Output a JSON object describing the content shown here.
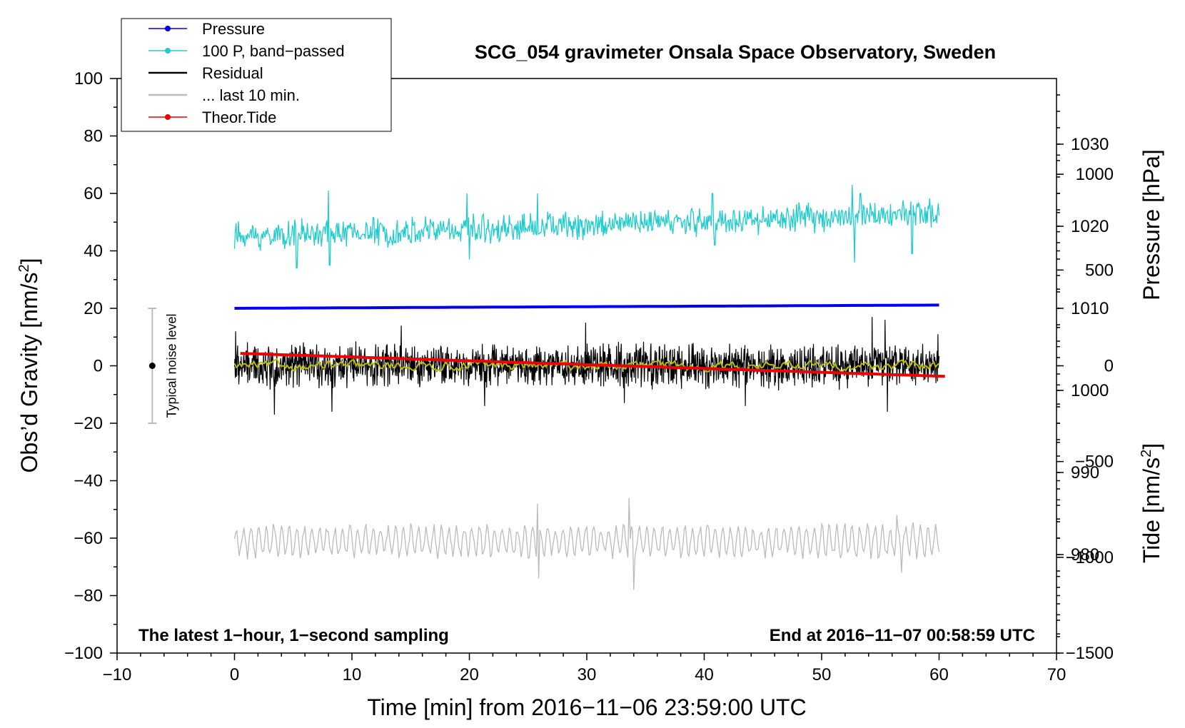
{
  "chart_data": {
    "type": "line",
    "title": "SCG_054 gravimeter Onsala Space Observatory, Sweden",
    "xlabel": "Time [min] from 2016−11−06 23:59:00 UTC",
    "ylabel_left": "Obs’d Gravity [nm/s",
    "ylabel_left_suffix": "]",
    "ylabel_pressure": "Pressure [hPa]",
    "ylabel_tide": "Tide [nm/s",
    "ylabel_tide_suffix": "]",
    "superscript": "2",
    "xlim": [
      -10,
      70
    ],
    "ylim": [
      -100,
      100
    ],
    "pressure_lim": [
      968,
      1038
    ],
    "tide_lim": [
      -1500,
      1500
    ],
    "x_ticks": [
      -10,
      0,
      10,
      20,
      30,
      40,
      50,
      60,
      70
    ],
    "x_tick_labels": [
      "−10",
      "0",
      "10",
      "20",
      "30",
      "40",
      "50",
      "60",
      "70"
    ],
    "y_ticks": [
      -100,
      -80,
      -60,
      -40,
      -20,
      0,
      20,
      40,
      60,
      80,
      100
    ],
    "y_tick_labels": [
      "−100",
      "−80",
      "−60",
      "−40",
      "−20",
      "0",
      "20",
      "40",
      "60",
      "80",
      "100"
    ],
    "pressure_ticks": [
      980,
      990,
      1000,
      1010,
      1020,
      1030
    ],
    "pressure_tick_labels": [
      "980",
      "990",
      "1000",
      "1010",
      "1020",
      "1030"
    ],
    "tide_ticks": [
      -1500,
      -1000,
      -500,
      0,
      500,
      1000
    ],
    "tide_tick_labels": [
      "−1500",
      "−1000",
      "−500",
      "0",
      "500",
      "1000"
    ],
    "annotation_left": "The latest 1−hour, 1−second sampling",
    "annotation_right": "End at 2016−11−07 00:58:59 UTC",
    "noise_label": "Typical noise level",
    "noise_bar": {
      "x": -7,
      "center": 0,
      "half_range": 20
    },
    "legend": [
      {
        "label": "Pressure",
        "color": "#0000ee",
        "marker": true
      },
      {
        "label": "100 P, band−passed",
        "color": "#22cccc",
        "marker": true
      },
      {
        "label": "Residual",
        "color": "#000000",
        "marker": false
      },
      {
        "label": "... last 10 min.",
        "color": "#bbbbbb",
        "marker": false
      },
      {
        "label": "Theor.Tide",
        "color": "#ee0000",
        "marker": true
      }
    ],
    "series": [
      {
        "name": "Pressure",
        "axis": "pressure",
        "color": "#0000ee",
        "x_range": [
          0,
          60
        ],
        "start": 1010.0,
        "end": 1010.4
      },
      {
        "name": "100 P, band-passed",
        "axis": "gravity",
        "color": "#22cccc",
        "x_range": [
          0,
          60
        ],
        "start": 45,
        "end": 53,
        "noise": 4,
        "spikes": [
          [
            5.3,
            34
          ],
          [
            8.0,
            61
          ],
          [
            8.1,
            35
          ],
          [
            19.8,
            60
          ],
          [
            20.0,
            37
          ],
          [
            25.8,
            60
          ],
          [
            40.7,
            60
          ],
          [
            40.9,
            42
          ],
          [
            52.6,
            63
          ],
          [
            52.8,
            36
          ],
          [
            53.3,
            60
          ],
          [
            57.7,
            39
          ]
        ]
      },
      {
        "name": "Residual",
        "axis": "gravity",
        "color": "#000000",
        "x_range": [
          0,
          60
        ],
        "center": 0,
        "noise": 6,
        "spikes": [
          [
            0.1,
            12
          ],
          [
            3.4,
            -17
          ],
          [
            8.3,
            -16
          ],
          [
            14.2,
            14
          ],
          [
            21.3,
            -14
          ],
          [
            29.9,
            15
          ],
          [
            33.2,
            -13
          ],
          [
            43.5,
            -14
          ],
          [
            54.3,
            17
          ],
          [
            55.4,
            16
          ],
          [
            55.6,
            -16
          ],
          [
            59.9,
            11
          ]
        ]
      },
      {
        "name": "Residual smoothed",
        "axis": "gravity",
        "color": "#bbbb00",
        "x_range": [
          0,
          60
        ],
        "center": 0,
        "noise": 1.2
      },
      {
        "name": "... last 10 min.",
        "axis": "gravity",
        "color": "#bbbbbb",
        "x_range": [
          0,
          60
        ],
        "center": -61,
        "noise": 5,
        "spikes": [
          [
            25.8,
            -48
          ],
          [
            25.9,
            -74
          ],
          [
            33.6,
            -46
          ],
          [
            34.0,
            -78
          ],
          [
            56.4,
            -52
          ],
          [
            56.8,
            -72
          ]
        ]
      },
      {
        "name": "Theor.Tide",
        "axis": "tide",
        "color": "#ee0000",
        "x_range": [
          0.5,
          60.5
        ],
        "start": 65,
        "end": -55
      }
    ]
  }
}
